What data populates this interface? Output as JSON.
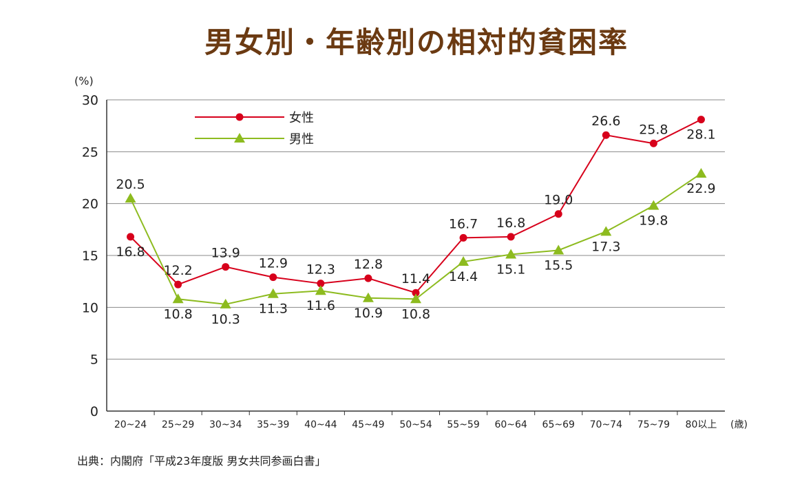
{
  "chart_data": {
    "type": "line",
    "title": "男女別・年齢別の相対的貧困率",
    "ylabel": "(%)",
    "xunit": "(歳)",
    "ylim": [
      0,
      30
    ],
    "yticks": [
      0,
      5,
      10,
      15,
      20,
      25,
      30
    ],
    "grid": true,
    "legend_position": "top-left",
    "categories": [
      "20~24",
      "25~29",
      "30~34",
      "35~39",
      "40~44",
      "45~49",
      "50~54",
      "55~59",
      "60~64",
      "65~69",
      "70~74",
      "75~79",
      "80以上"
    ],
    "series": [
      {
        "name": "女性",
        "marker": "circle",
        "color": "#d7001b",
        "values": [
          16.8,
          12.2,
          13.9,
          12.9,
          12.3,
          12.8,
          11.4,
          16.7,
          16.8,
          19.0,
          26.6,
          25.8,
          28.1
        ]
      },
      {
        "name": "男性",
        "marker": "triangle",
        "color": "#8dbb1f",
        "values": [
          20.5,
          10.8,
          10.3,
          11.3,
          11.6,
          10.9,
          10.8,
          14.4,
          15.1,
          15.5,
          17.3,
          19.8,
          22.9
        ]
      }
    ],
    "source": "出典：内閣府「平成23年度版 男女共同参画白書」"
  }
}
